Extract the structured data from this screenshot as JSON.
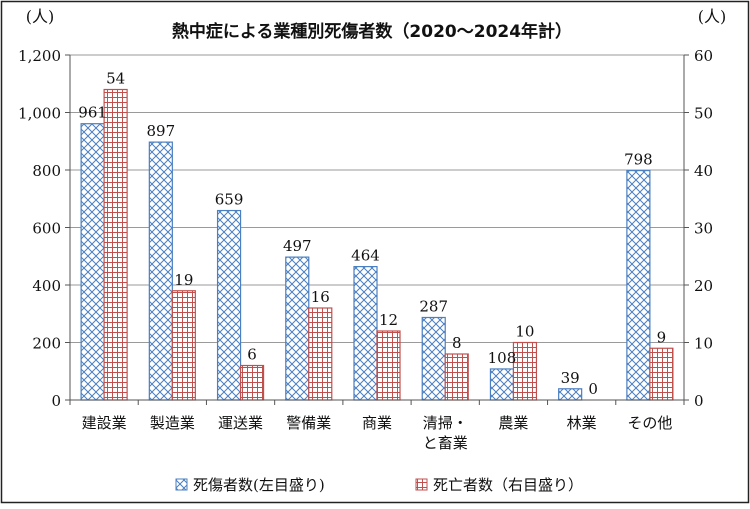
{
  "chart_data": {
    "type": "bar",
    "title": "熱中症による業種別死傷者数（2020～2024年計）",
    "left_unit": "(人)",
    "right_unit": "(人)",
    "categories": [
      [
        "建設業"
      ],
      [
        "製造業"
      ],
      [
        "運送業"
      ],
      [
        "警備業"
      ],
      [
        "商業"
      ],
      [
        "清掃・",
        "と畜業"
      ],
      [
        "農業"
      ],
      [
        "林業"
      ],
      [
        "その他"
      ]
    ],
    "series": [
      {
        "name": "死傷者数(左目盛り)",
        "axis": "left",
        "values": [
          961,
          897,
          659,
          497,
          464,
          287,
          108,
          39,
          798
        ],
        "color": "#4a7fc1",
        "pattern": "crosshatch"
      },
      {
        "name": "死亡者数（右目盛り）",
        "axis": "right",
        "values": [
          54,
          19,
          6,
          16,
          12,
          8,
          10,
          0,
          9
        ],
        "color": "#c0504d",
        "pattern": "grid"
      }
    ],
    "y_left": {
      "lim": [
        0,
        1200
      ],
      "ticks": [
        "0",
        "200",
        "400",
        "600",
        "800",
        "1,000",
        "1,200"
      ]
    },
    "y_right": {
      "lim": [
        0,
        60
      ],
      "ticks": [
        "0",
        "10",
        "20",
        "30",
        "40",
        "50",
        "60"
      ]
    },
    "grid": true,
    "legend_position": "bottom"
  }
}
